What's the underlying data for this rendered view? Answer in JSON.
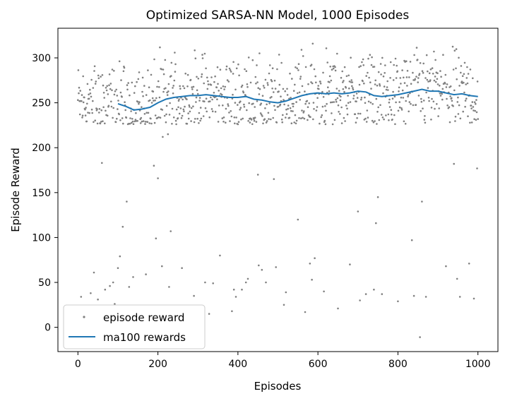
{
  "chart_data": {
    "type": "scatter",
    "title": "Optimized SARSA-NN Model, 1000 Episodes",
    "xlabel": "Episodes",
    "ylabel": "Episode Reward",
    "xlim": [
      -50,
      1050
    ],
    "ylim": [
      -27,
      333
    ],
    "xticks": [
      0,
      200,
      400,
      600,
      800,
      1000
    ],
    "yticks": [
      0,
      50,
      100,
      150,
      200,
      250,
      300
    ],
    "grid": false,
    "legend_placement": "lower-left",
    "colors": {
      "scatter": "#808080",
      "line": "#1f77b4"
    },
    "series": [
      {
        "name": "episode reward",
        "kind": "scatter",
        "outliers": [
          [
            8,
            34
          ],
          [
            32,
            38
          ],
          [
            40,
            61
          ],
          [
            50,
            31
          ],
          [
            60,
            183
          ],
          [
            68,
            42
          ],
          [
            80,
            46
          ],
          [
            88,
            50
          ],
          [
            92,
            26
          ],
          [
            100,
            66
          ],
          [
            105,
            79
          ],
          [
            112,
            112
          ],
          [
            122,
            140
          ],
          [
            128,
            45
          ],
          [
            138,
            56
          ],
          [
            170,
            59
          ],
          [
            190,
            180
          ],
          [
            195,
            99
          ],
          [
            200,
            166
          ],
          [
            210,
            68
          ],
          [
            212,
            212
          ],
          [
            225,
            215
          ],
          [
            228,
            45
          ],
          [
            232,
            107
          ],
          [
            260,
            66
          ],
          [
            290,
            35
          ],
          [
            318,
            50
          ],
          [
            328,
            15
          ],
          [
            338,
            49
          ],
          [
            355,
            80
          ],
          [
            385,
            18
          ],
          [
            390,
            42
          ],
          [
            395,
            34
          ],
          [
            410,
            42
          ],
          [
            420,
            50
          ],
          [
            425,
            54
          ],
          [
            450,
            170
          ],
          [
            452,
            69
          ],
          [
            460,
            64
          ],
          [
            470,
            50
          ],
          [
            490,
            165
          ],
          [
            495,
            67
          ],
          [
            515,
            25
          ],
          [
            520,
            39
          ],
          [
            550,
            120
          ],
          [
            568,
            17
          ],
          [
            580,
            71
          ],
          [
            585,
            53
          ],
          [
            592,
            77
          ],
          [
            615,
            40
          ],
          [
            650,
            21
          ],
          [
            680,
            70
          ],
          [
            700,
            129
          ],
          [
            705,
            30
          ],
          [
            720,
            37
          ],
          [
            740,
            42
          ],
          [
            745,
            116
          ],
          [
            750,
            145
          ],
          [
            760,
            37
          ],
          [
            800,
            29
          ],
          [
            835,
            97
          ],
          [
            840,
            35
          ],
          [
            855,
            -11
          ],
          [
            860,
            140
          ],
          [
            870,
            34
          ],
          [
            920,
            68
          ],
          [
            940,
            182
          ],
          [
            948,
            54
          ],
          [
            955,
            34
          ],
          [
            978,
            71
          ],
          [
            990,
            32
          ],
          [
            998,
            177
          ]
        ]
      },
      {
        "name": "ma100 rewards",
        "kind": "line",
        "x": [
          100,
          120,
          140,
          160,
          180,
          200,
          220,
          240,
          260,
          280,
          300,
          320,
          340,
          360,
          380,
          400,
          420,
          440,
          460,
          480,
          500,
          520,
          540,
          560,
          580,
          600,
          620,
          640,
          660,
          680,
          700,
          720,
          740,
          760,
          780,
          800,
          820,
          840,
          860,
          880,
          900,
          920,
          940,
          960,
          980,
          1000
        ],
        "y": [
          249,
          246,
          242,
          243,
          245,
          250,
          254,
          256,
          257,
          258,
          258,
          259,
          258,
          257,
          256,
          256,
          257,
          254,
          253,
          251,
          250,
          252,
          255,
          258,
          260,
          261,
          260,
          261,
          260,
          261,
          263,
          262,
          258,
          257,
          258,
          259,
          261,
          263,
          265,
          263,
          263,
          261,
          259,
          260,
          258,
          257
        ]
      }
    ]
  }
}
